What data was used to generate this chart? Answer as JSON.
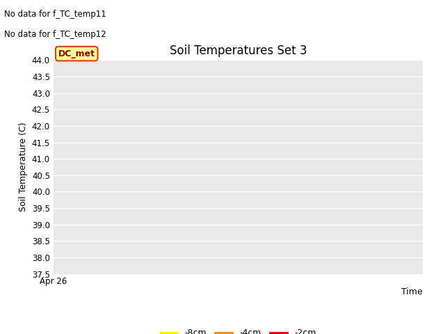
{
  "title": "Soil Temperatures Set 3",
  "xlabel": "Time",
  "ylabel": "Soil Temperature (C)",
  "ylim": [
    37.5,
    44.0
  ],
  "yticks": [
    37.5,
    38.0,
    38.5,
    39.0,
    39.5,
    40.0,
    40.5,
    41.0,
    41.5,
    42.0,
    42.5,
    43.0,
    43.5,
    44.0
  ],
  "xtick_labels": [
    "Apr 26"
  ],
  "no_data_text": [
    "No data for f_TC_temp11",
    "No data for f_TC_temp12"
  ],
  "legend_items": [
    {
      "label": "-8cm",
      "color": "#ffee00"
    },
    {
      "label": "-4cm",
      "color": "#ff8800"
    },
    {
      "label": "-2cm",
      "color": "#cc0000"
    }
  ],
  "dc_met_label": "DC_met",
  "dc_met_bg": "#ffff99",
  "dc_met_border": "#cc4400",
  "dc_met_text_color": "#880000",
  "fig_bg": "#ffffff",
  "plot_bg": "#e8e8e8",
  "grid_color": "#ffffff",
  "title_fontsize": 12,
  "axis_label_fontsize": 9,
  "tick_fontsize": 8.5,
  "no_data_fontsize": 8.5
}
